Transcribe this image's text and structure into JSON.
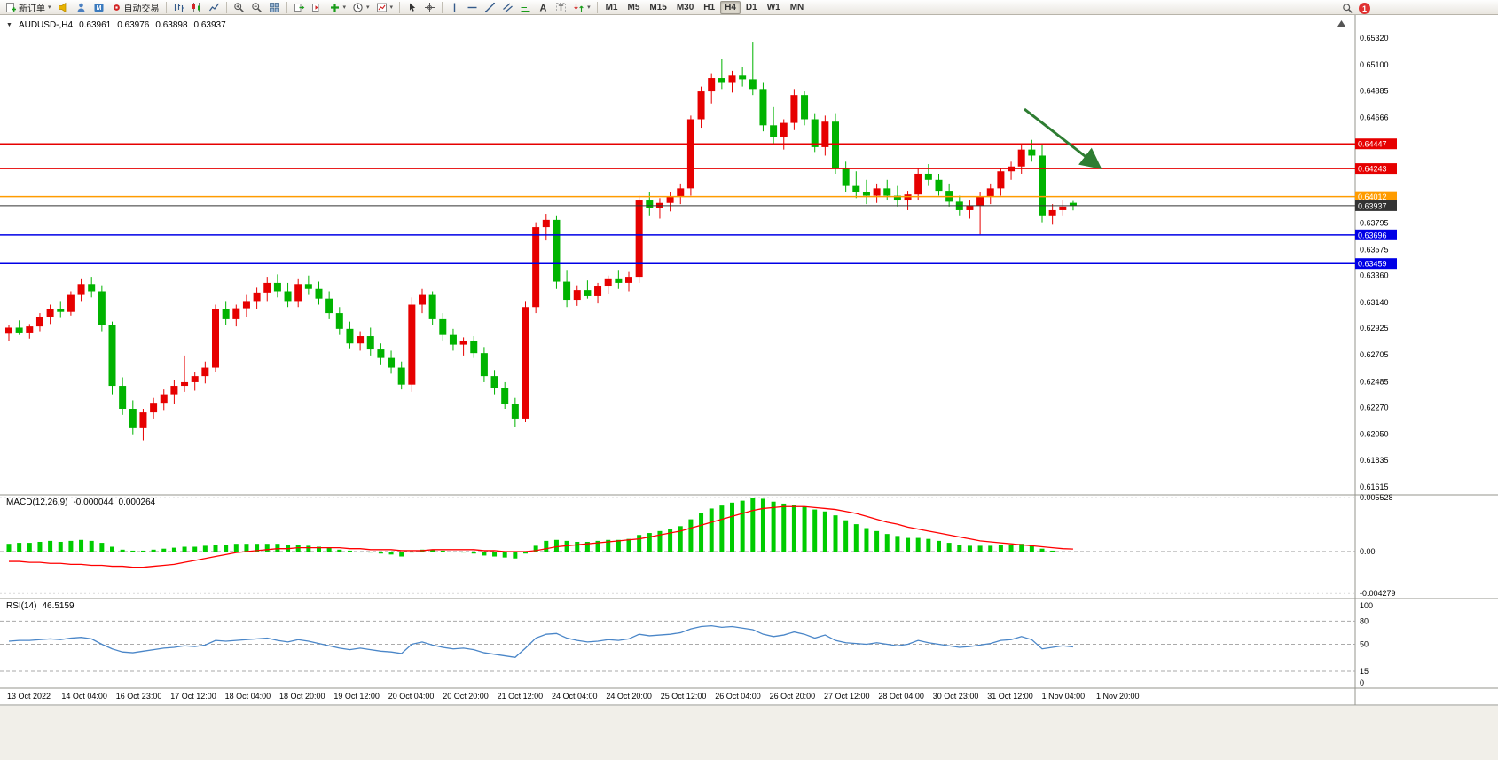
{
  "toolbar": {
    "new_order": "新订单",
    "auto_trading": "自动交易",
    "timeframes": [
      "M1",
      "M5",
      "M15",
      "M30",
      "H1",
      "H4",
      "D1",
      "W1",
      "MN"
    ],
    "active_timeframe": "H4",
    "notification_count": "1"
  },
  "chart_header": {
    "symbol_period": "AUDUSD-,H4",
    "open": "0.63961",
    "high": "0.63976",
    "low": "0.63898",
    "close": "0.63937"
  },
  "price_axis": {
    "plain_ticks": [
      "0.65320",
      "0.65100",
      "0.64885",
      "0.64666",
      "0.63795",
      "0.63575",
      "0.63360",
      "0.63140",
      "0.62925",
      "0.62705",
      "0.62485",
      "0.62270",
      "0.62050",
      "0.61835",
      "0.61615"
    ]
  },
  "hlines": [
    {
      "price": 0.64447,
      "label": "0.64447",
      "color": "#e60000"
    },
    {
      "price": 0.64243,
      "label": "0.64243",
      "color": "#e60000"
    },
    {
      "price": 0.64012,
      "label": "0.64012",
      "color": "#ff9c00"
    },
    {
      "price": 0.63937,
      "label": "0.63937",
      "color": "#333333",
      "is_current_price": true
    },
    {
      "price": 0.63696,
      "label": "0.63696",
      "color": "#0000e6"
    },
    {
      "price": 0.63459,
      "label": "0.63459",
      "color": "#0000e6"
    }
  ],
  "time_axis": [
    "13 Oct 2022",
    "14 Oct 04:00",
    "16 Oct 23:00",
    "17 Oct 12:00",
    "18 Oct 04:00",
    "18 Oct 20:00",
    "19 Oct 12:00",
    "20 Oct 04:00",
    "20 Oct 20:00",
    "21 Oct 12:00",
    "24 Oct 04:00",
    "24 Oct 20:00",
    "25 Oct 12:00",
    "26 Oct 04:00",
    "26 Oct 20:00",
    "27 Oct 12:00",
    "28 Oct 04:00",
    "30 Oct 23:00",
    "31 Oct 12:00",
    "1 Nov 04:00",
    "1 Nov 20:00"
  ],
  "macd_panel": {
    "label": "MACD(12,26,9)",
    "value_main": "-0.000044",
    "value_signal": "0.000264",
    "axis": [
      "0.005528",
      "0.00",
      "-0.004279"
    ]
  },
  "rsi_panel": {
    "label": "RSI(14)",
    "value": "46.5159",
    "axis": [
      "100",
      "80",
      "50",
      "15",
      "0"
    ],
    "levels": [
      80,
      50,
      15
    ]
  },
  "annotation": {
    "type": "trend-arrow",
    "direction": "down-right",
    "color": "#2e7d32"
  },
  "chart_data": [
    {
      "type": "candlestick",
      "title": "AUDUSD- H4",
      "up_color": "#e60000",
      "down_color": "#00b300",
      "ylim": [
        0.6155,
        0.6551
      ],
      "ohlc": [
        [
          0.6288,
          0.6295,
          0.6282,
          0.6293
        ],
        [
          0.6293,
          0.6299,
          0.6287,
          0.6289
        ],
        [
          0.6289,
          0.6296,
          0.6284,
          0.6294
        ],
        [
          0.6294,
          0.6305,
          0.629,
          0.6302
        ],
        [
          0.6302,
          0.6312,
          0.6296,
          0.6308
        ],
        [
          0.6308,
          0.6315,
          0.6301,
          0.6306
        ],
        [
          0.6306,
          0.6323,
          0.6303,
          0.632
        ],
        [
          0.632,
          0.6333,
          0.6315,
          0.6329
        ],
        [
          0.6329,
          0.6335,
          0.6318,
          0.6323
        ],
        [
          0.6323,
          0.6328,
          0.629,
          0.6295
        ],
        [
          0.6295,
          0.6298,
          0.6238,
          0.6245
        ],
        [
          0.6245,
          0.6252,
          0.6221,
          0.6226
        ],
        [
          0.6226,
          0.6233,
          0.6205,
          0.621
        ],
        [
          0.621,
          0.6226,
          0.62,
          0.6223
        ],
        [
          0.6223,
          0.6235,
          0.6218,
          0.6231
        ],
        [
          0.6231,
          0.6242,
          0.6225,
          0.6238
        ],
        [
          0.6238,
          0.625,
          0.623,
          0.6245
        ],
        [
          0.6245,
          0.627,
          0.624,
          0.6248
        ],
        [
          0.6248,
          0.6256,
          0.6241,
          0.6253
        ],
        [
          0.6253,
          0.6265,
          0.6247,
          0.626
        ],
        [
          0.626,
          0.6312,
          0.6256,
          0.6308
        ],
        [
          0.6308,
          0.6315,
          0.6295,
          0.63
        ],
        [
          0.63,
          0.6312,
          0.6294,
          0.6309
        ],
        [
          0.6309,
          0.632,
          0.6302,
          0.6315
        ],
        [
          0.6315,
          0.6326,
          0.6308,
          0.6322
        ],
        [
          0.6322,
          0.6335,
          0.6315,
          0.633
        ],
        [
          0.633,
          0.6337,
          0.6318,
          0.6323
        ],
        [
          0.6323,
          0.633,
          0.631,
          0.6315
        ],
        [
          0.6315,
          0.6333,
          0.631,
          0.6329
        ],
        [
          0.6329,
          0.6336,
          0.632,
          0.6325
        ],
        [
          0.6325,
          0.6331,
          0.6312,
          0.6317
        ],
        [
          0.6317,
          0.6323,
          0.63,
          0.6305
        ],
        [
          0.6305,
          0.631,
          0.6287,
          0.6292
        ],
        [
          0.6292,
          0.6298,
          0.6276,
          0.628
        ],
        [
          0.628,
          0.629,
          0.6274,
          0.6286
        ],
        [
          0.6286,
          0.6293,
          0.627,
          0.6275
        ],
        [
          0.6275,
          0.628,
          0.6262,
          0.6268
        ],
        [
          0.6268,
          0.6274,
          0.6255,
          0.626
        ],
        [
          0.626,
          0.6265,
          0.6242,
          0.6246
        ],
        [
          0.6246,
          0.6318,
          0.624,
          0.6312
        ],
        [
          0.6312,
          0.6325,
          0.6305,
          0.632
        ],
        [
          0.632,
          0.6323,
          0.6295,
          0.63
        ],
        [
          0.63,
          0.6305,
          0.6282,
          0.6287
        ],
        [
          0.6287,
          0.6292,
          0.6274,
          0.6279
        ],
        [
          0.6279,
          0.6285,
          0.627,
          0.6282
        ],
        [
          0.6282,
          0.6286,
          0.6268,
          0.6272
        ],
        [
          0.6272,
          0.6277,
          0.6248,
          0.6253
        ],
        [
          0.6253,
          0.6258,
          0.6238,
          0.6243
        ],
        [
          0.6243,
          0.6248,
          0.6226,
          0.623
        ],
        [
          0.623,
          0.6235,
          0.6211,
          0.6218
        ],
        [
          0.6218,
          0.6315,
          0.6215,
          0.631
        ],
        [
          0.631,
          0.638,
          0.6305,
          0.6376
        ],
        [
          0.6376,
          0.6387,
          0.6365,
          0.6382
        ],
        [
          0.6382,
          0.6385,
          0.6325,
          0.6331
        ],
        [
          0.6331,
          0.634,
          0.631,
          0.6316
        ],
        [
          0.6316,
          0.6328,
          0.6311,
          0.6324
        ],
        [
          0.6324,
          0.6332,
          0.6317,
          0.6319
        ],
        [
          0.6319,
          0.633,
          0.6313,
          0.6327
        ],
        [
          0.6327,
          0.6336,
          0.6321,
          0.6333
        ],
        [
          0.6333,
          0.634,
          0.6325,
          0.633
        ],
        [
          0.633,
          0.6339,
          0.6323,
          0.6335
        ],
        [
          0.6335,
          0.6402,
          0.633,
          0.6398
        ],
        [
          0.6398,
          0.6405,
          0.6385,
          0.6392
        ],
        [
          0.6392,
          0.64,
          0.6383,
          0.6396
        ],
        [
          0.6396,
          0.6405,
          0.6389,
          0.6401
        ],
        [
          0.6401,
          0.6412,
          0.6395,
          0.6408
        ],
        [
          0.6408,
          0.6468,
          0.6402,
          0.6465
        ],
        [
          0.6465,
          0.6492,
          0.6458,
          0.6488
        ],
        [
          0.6488,
          0.6503,
          0.6478,
          0.6499
        ],
        [
          0.6499,
          0.6515,
          0.649,
          0.6495
        ],
        [
          0.6495,
          0.6505,
          0.6487,
          0.6501
        ],
        [
          0.6501,
          0.6508,
          0.6492,
          0.6498
        ],
        [
          0.6498,
          0.6529,
          0.6485,
          0.649
        ],
        [
          0.649,
          0.6495,
          0.6455,
          0.646
        ],
        [
          0.646,
          0.6475,
          0.6445,
          0.645
        ],
        [
          0.645,
          0.6465,
          0.644,
          0.6462
        ],
        [
          0.6462,
          0.649,
          0.6456,
          0.6485
        ],
        [
          0.6485,
          0.6488,
          0.646,
          0.6465
        ],
        [
          0.6465,
          0.647,
          0.6438,
          0.6442
        ],
        [
          0.6442,
          0.6468,
          0.6435,
          0.6463
        ],
        [
          0.6463,
          0.647,
          0.642,
          0.6425
        ],
        [
          0.6425,
          0.643,
          0.6405,
          0.641
        ],
        [
          0.641,
          0.6422,
          0.64,
          0.6405
        ],
        [
          0.6405,
          0.6415,
          0.6395,
          0.6402
        ],
        [
          0.6402,
          0.6412,
          0.6396,
          0.6408
        ],
        [
          0.6408,
          0.6415,
          0.6398,
          0.6402
        ],
        [
          0.6402,
          0.641,
          0.6393,
          0.6398
        ],
        [
          0.6398,
          0.6406,
          0.639,
          0.6403
        ],
        [
          0.6403,
          0.6425,
          0.6398,
          0.642
        ],
        [
          0.642,
          0.6428,
          0.641,
          0.6415
        ],
        [
          0.6415,
          0.642,
          0.6402,
          0.6406
        ],
        [
          0.6406,
          0.6412,
          0.6393,
          0.6397
        ],
        [
          0.6397,
          0.6402,
          0.6385,
          0.639
        ],
        [
          0.639,
          0.6398,
          0.6383,
          0.6394
        ],
        [
          0.6394,
          0.6405,
          0.637,
          0.6401
        ],
        [
          0.6401,
          0.6412,
          0.6395,
          0.6408
        ],
        [
          0.6408,
          0.6425,
          0.6402,
          0.6422
        ],
        [
          0.6422,
          0.643,
          0.6415,
          0.6426
        ],
        [
          0.6426,
          0.6445,
          0.642,
          0.644
        ],
        [
          0.644,
          0.6448,
          0.643,
          0.6435
        ],
        [
          0.6435,
          0.6444,
          0.638,
          0.6385
        ],
        [
          0.6385,
          0.6395,
          0.6378,
          0.639
        ],
        [
          0.639,
          0.6398,
          0.6385,
          0.6393
        ],
        [
          0.63961,
          0.63976,
          0.63898,
          0.63937
        ]
      ]
    },
    {
      "type": "bar",
      "name": "MACD histogram",
      "color": "#00cc00",
      "signal_color": "#ff0000",
      "ylim": [
        -0.0048,
        0.0058
      ],
      "values": [
        0.0008,
        0.0009,
        0.0009,
        0.001,
        0.0011,
        0.001,
        0.0011,
        0.0012,
        0.0011,
        0.0009,
        0.0005,
        0.0002,
        0.0001,
        0.0001,
        0.0002,
        0.0003,
        0.0004,
        0.0005,
        0.0005,
        0.0006,
        0.0007,
        0.0007,
        0.0008,
        0.0008,
        0.0008,
        0.0008,
        0.0008,
        0.0007,
        0.0007,
        0.0006,
        0.0005,
        0.0004,
        0.0002,
        0.0001,
        0.0,
        -0.0001,
        -0.0002,
        -0.0003,
        -0.0005,
        -0.0001,
        0.0002,
        0.0002,
        0.0001,
        0.0,
        -0.0001,
        -0.0002,
        -0.0004,
        -0.0005,
        -0.0006,
        -0.0007,
        -0.0002,
        0.0006,
        0.0011,
        0.0012,
        0.0011,
        0.001,
        0.001,
        0.0011,
        0.0012,
        0.0012,
        0.0013,
        0.0017,
        0.0019,
        0.0021,
        0.0023,
        0.0026,
        0.0033,
        0.0039,
        0.0044,
        0.0047,
        0.005,
        0.0052,
        0.0055,
        0.0054,
        0.0051,
        0.0049,
        0.0048,
        0.0046,
        0.0043,
        0.0041,
        0.0037,
        0.0032,
        0.0028,
        0.0024,
        0.0021,
        0.0018,
        0.0016,
        0.0014,
        0.0014,
        0.0013,
        0.0011,
        0.0009,
        0.0007,
        0.0006,
        0.0006,
        0.0006,
        0.0007,
        0.0007,
        0.0008,
        0.0007,
        0.0003,
        0.0001,
        0.0,
        -4.4e-05
      ],
      "signal": [
        -0.001,
        -0.001,
        -0.0011,
        -0.0011,
        -0.0012,
        -0.0012,
        -0.0013,
        -0.0013,
        -0.0014,
        -0.0014,
        -0.0015,
        -0.0015,
        -0.0016,
        -0.0016,
        -0.0015,
        -0.0014,
        -0.0013,
        -0.0011,
        -0.0009,
        -0.0007,
        -0.0005,
        -0.0003,
        -0.0001,
        0.0,
        0.0001,
        0.0002,
        0.0003,
        0.0003,
        0.0004,
        0.0004,
        0.0004,
        0.0004,
        0.0004,
        0.0003,
        0.0003,
        0.0002,
        0.0002,
        0.0002,
        0.0001,
        0.0001,
        0.0001,
        0.0002,
        0.0002,
        0.0002,
        0.0002,
        0.0002,
        0.0001,
        0.0001,
        0.0,
        0.0,
        0.0,
        0.0001,
        0.0003,
        0.0005,
        0.0006,
        0.0007,
        0.0008,
        0.0009,
        0.001,
        0.0011,
        0.0012,
        0.0013,
        0.0015,
        0.0017,
        0.0019,
        0.0021,
        0.0024,
        0.0027,
        0.003,
        0.0033,
        0.0036,
        0.0039,
        0.0042,
        0.0044,
        0.0045,
        0.0046,
        0.0046,
        0.0046,
        0.0045,
        0.0044,
        0.0043,
        0.0041,
        0.0039,
        0.0036,
        0.0033,
        0.003,
        0.0028,
        0.0025,
        0.0023,
        0.0021,
        0.0019,
        0.0017,
        0.0015,
        0.0013,
        0.0011,
        0.001,
        0.0009,
        0.0008,
        0.0007,
        0.0006,
        0.0005,
        0.0004,
        0.0003,
        0.000264
      ]
    },
    {
      "type": "line",
      "name": "RSI",
      "color": "#4a86c8",
      "ylim": [
        0,
        100
      ],
      "values": [
        54,
        55,
        55,
        56,
        57,
        56,
        58,
        59,
        57,
        50,
        44,
        40,
        39,
        41,
        43,
        45,
        46,
        48,
        47,
        49,
        55,
        54,
        55,
        56,
        57,
        58,
        55,
        53,
        56,
        54,
        51,
        48,
        45,
        43,
        45,
        43,
        41,
        40,
        38,
        50,
        53,
        49,
        46,
        44,
        45,
        43,
        39,
        37,
        35,
        33,
        45,
        58,
        63,
        64,
        58,
        55,
        53,
        54,
        56,
        55,
        57,
        63,
        61,
        62,
        63,
        65,
        70,
        73,
        74,
        72,
        73,
        71,
        69,
        63,
        60,
        62,
        66,
        63,
        58,
        62,
        55,
        52,
        51,
        50,
        52,
        50,
        48,
        50,
        55,
        52,
        50,
        48,
        46,
        47,
        49,
        51,
        55,
        56,
        60,
        56,
        44,
        46,
        48,
        46.5159
      ]
    }
  ]
}
